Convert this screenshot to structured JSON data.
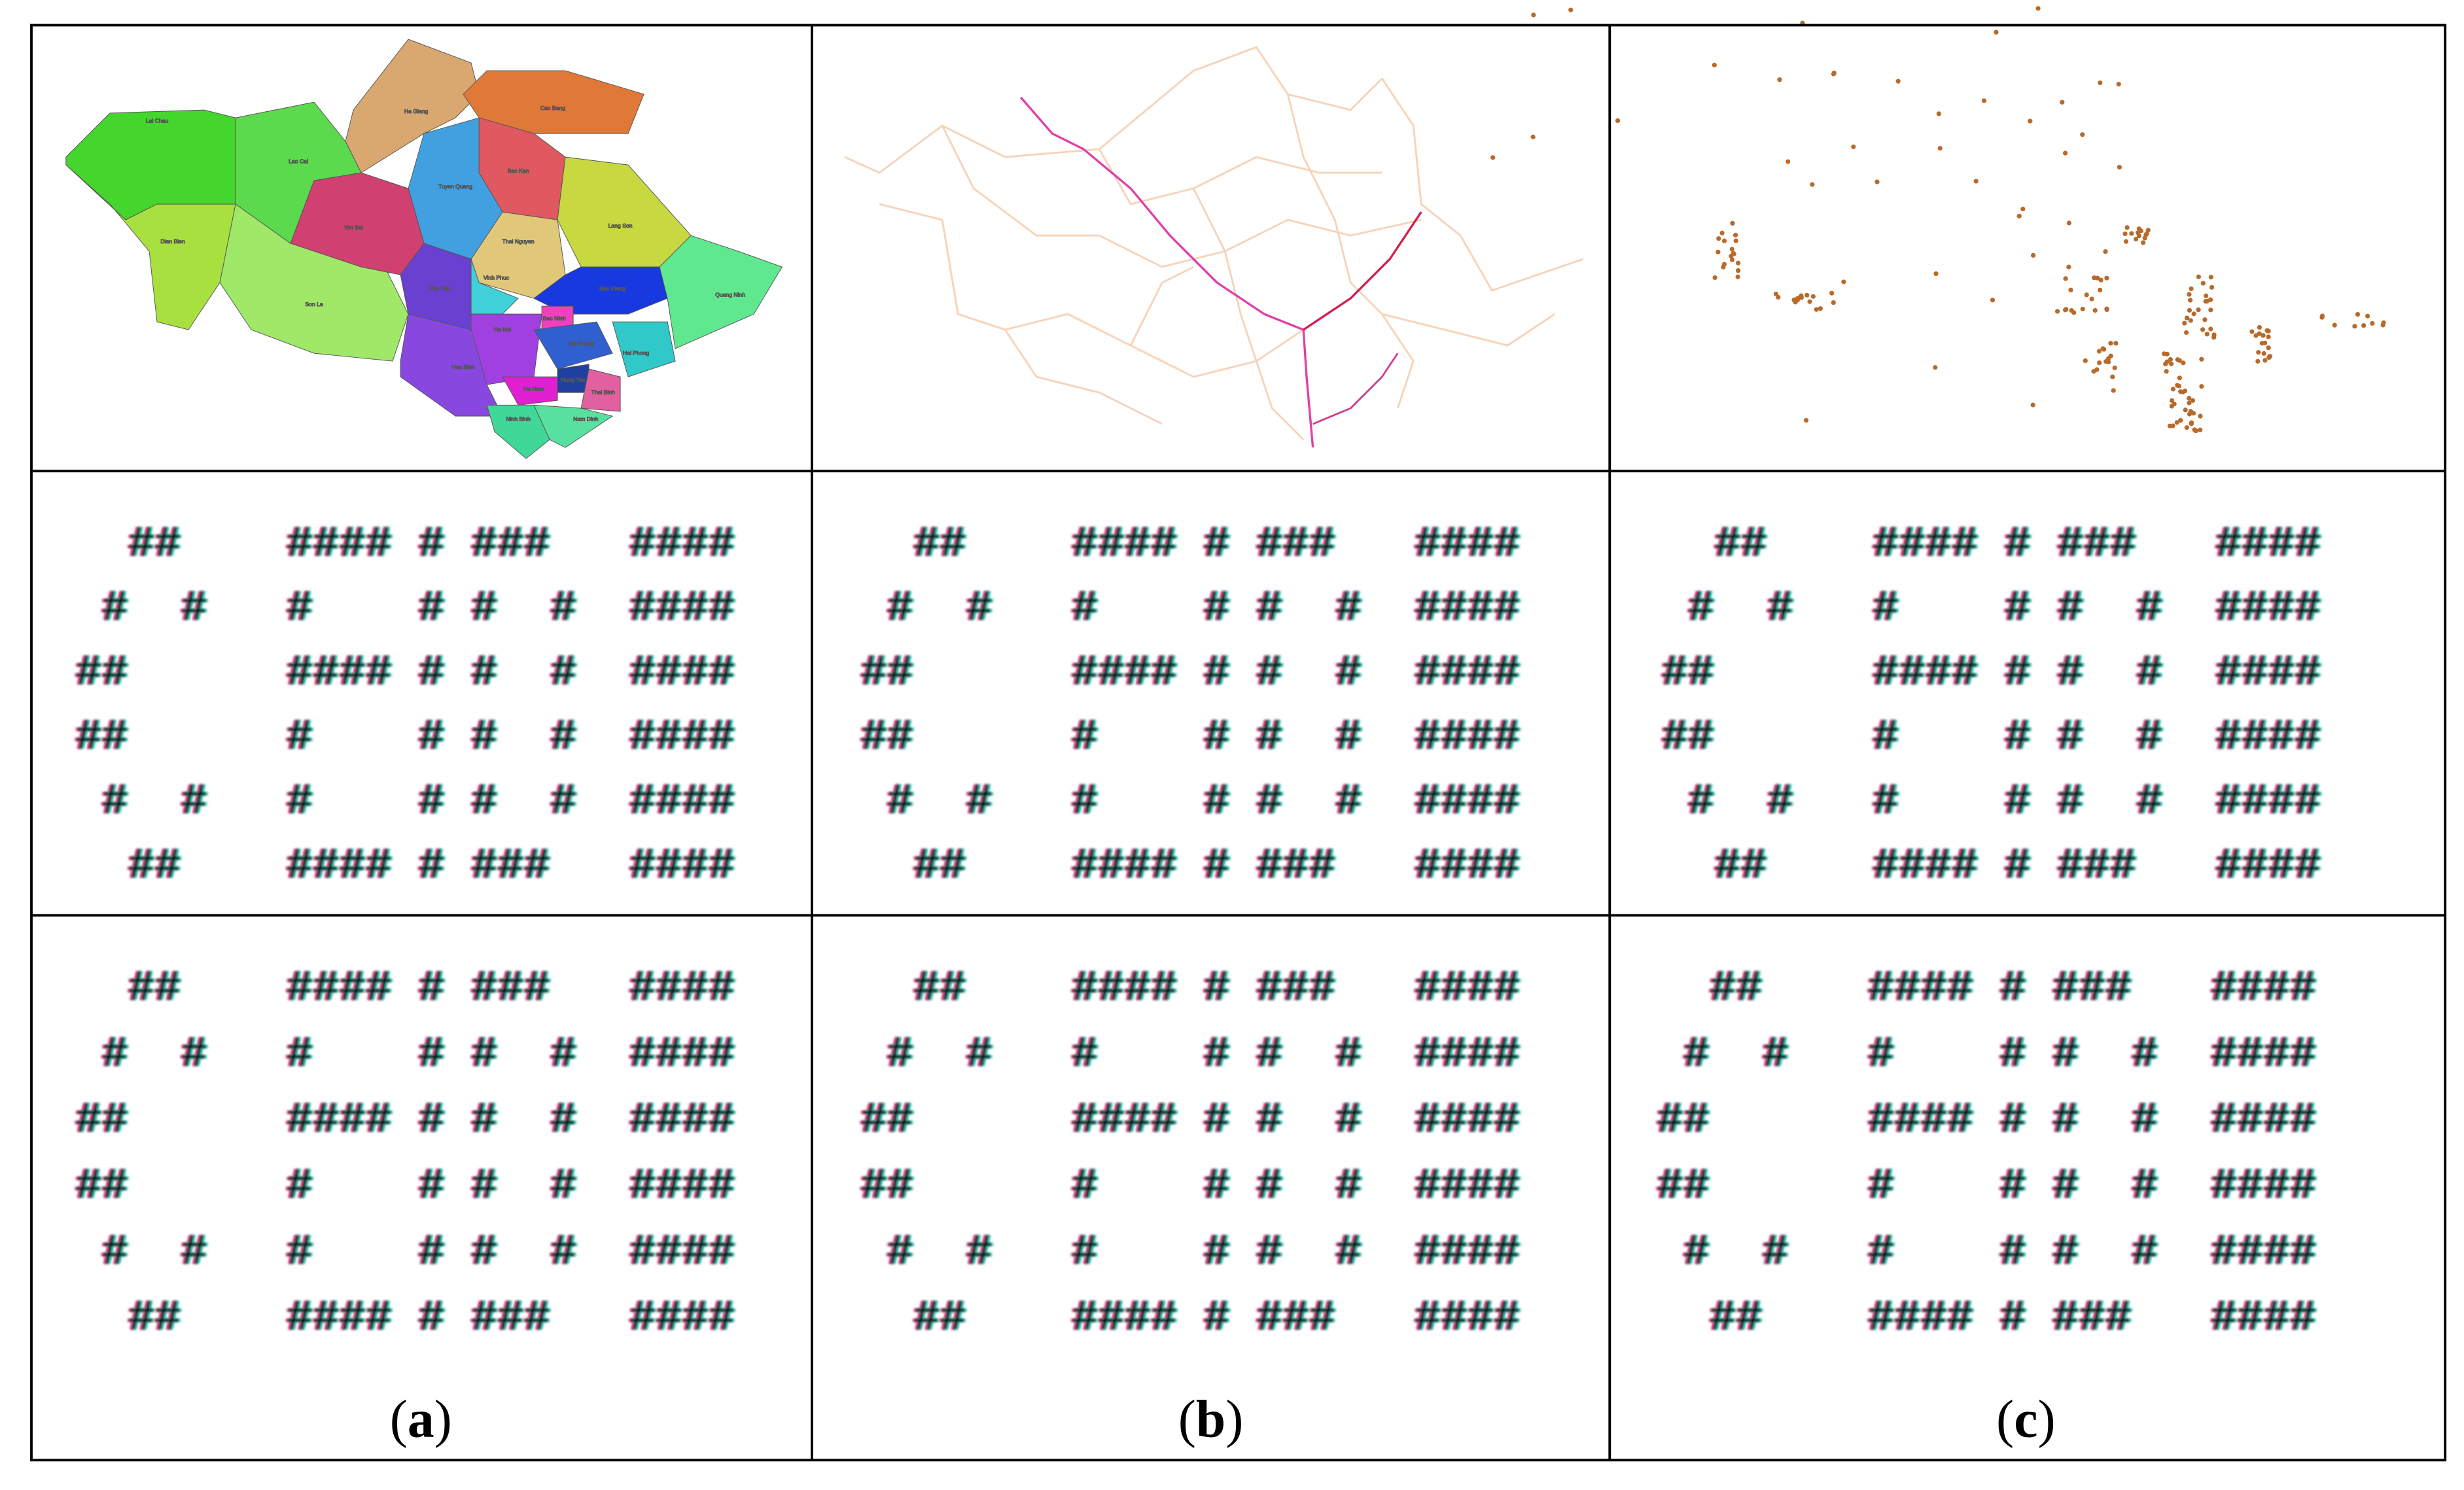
{
  "map_labels": [
    "Lai Chau",
    "Lao Cai",
    "Ha Giang",
    "Cao Bang",
    "Bac Kan",
    "Tuyen Quang",
    "Yen Bai",
    "Lang Son",
    "Thai Nguyen",
    "Dien Bien",
    "Son La",
    "Phu Tho",
    "Vinh Phuc",
    "Bac Giang",
    "Quang Ninh",
    "Ha Noi",
    "Bac Ninh",
    "Hai Duong",
    "Hai Phong",
    "Hung Yen",
    "Hoa Binh",
    "Ha Nam",
    "Thai Binh",
    "Ninh Binh",
    "Nam Dinh"
  ],
  "art_rows": [
    [
      [
        "  ##    #### # ###   ####",
        " #  #   #    # #  #  ####",
        "##      #### # #  #  ####",
        "##      #    # #  #  ####",
        " #  #   #    # #  #  ####",
        "  ##    #### # ###   ####"
      ],
      [
        "  ##    #### # ###   ####",
        " #  #   #    # #  #  ####",
        "##      #### # #  #  ####",
        "##      #    # #  #  ####",
        " #  #   #    # #  #  ####",
        "  ##    #### # ###   ####"
      ],
      [
        "  ##    #### # ###   ####",
        " #  #   #    # #  #  ####",
        "##      #### # #  #  ####",
        "##      #    # #  #  ####",
        " #  #   #    # #  #  ####",
        "  ##    #### # ###   ####"
      ]
    ],
    [
      [
        "  ##    #### # ###   ####",
        " #  #   #    # #  #  ####",
        "##      #### # #  #  ####",
        "##      #    # #  #  ####",
        " #  #   #    # #  #  ####",
        "  ##    #### # ###   ####"
      ],
      [
        "  ##    #### # ###   ####",
        " #  #   #    # #  #  ####",
        "##      #### # #  #  ####",
        "##      #    # #  #  ####",
        " #  #   #    # #  #  ####",
        "  ##    #### # ###   ####"
      ],
      [
        "  ##    #### # ###   ####",
        " #  #   #    # #  #  ####",
        "##      #### # #  #  ####",
        "##      #    # #  #  ####",
        " #  #   #    # #  #  ####",
        "  ##    #### # ###   ####"
      ]
    ]
  ],
  "labels": [
    {
      "open": "(",
      "letter": "a",
      "close": ")"
    },
    {
      "open": "(",
      "letter": "b",
      "close": ")"
    },
    {
      "open": "(",
      "letter": "c",
      "close": ")"
    }
  ]
}
